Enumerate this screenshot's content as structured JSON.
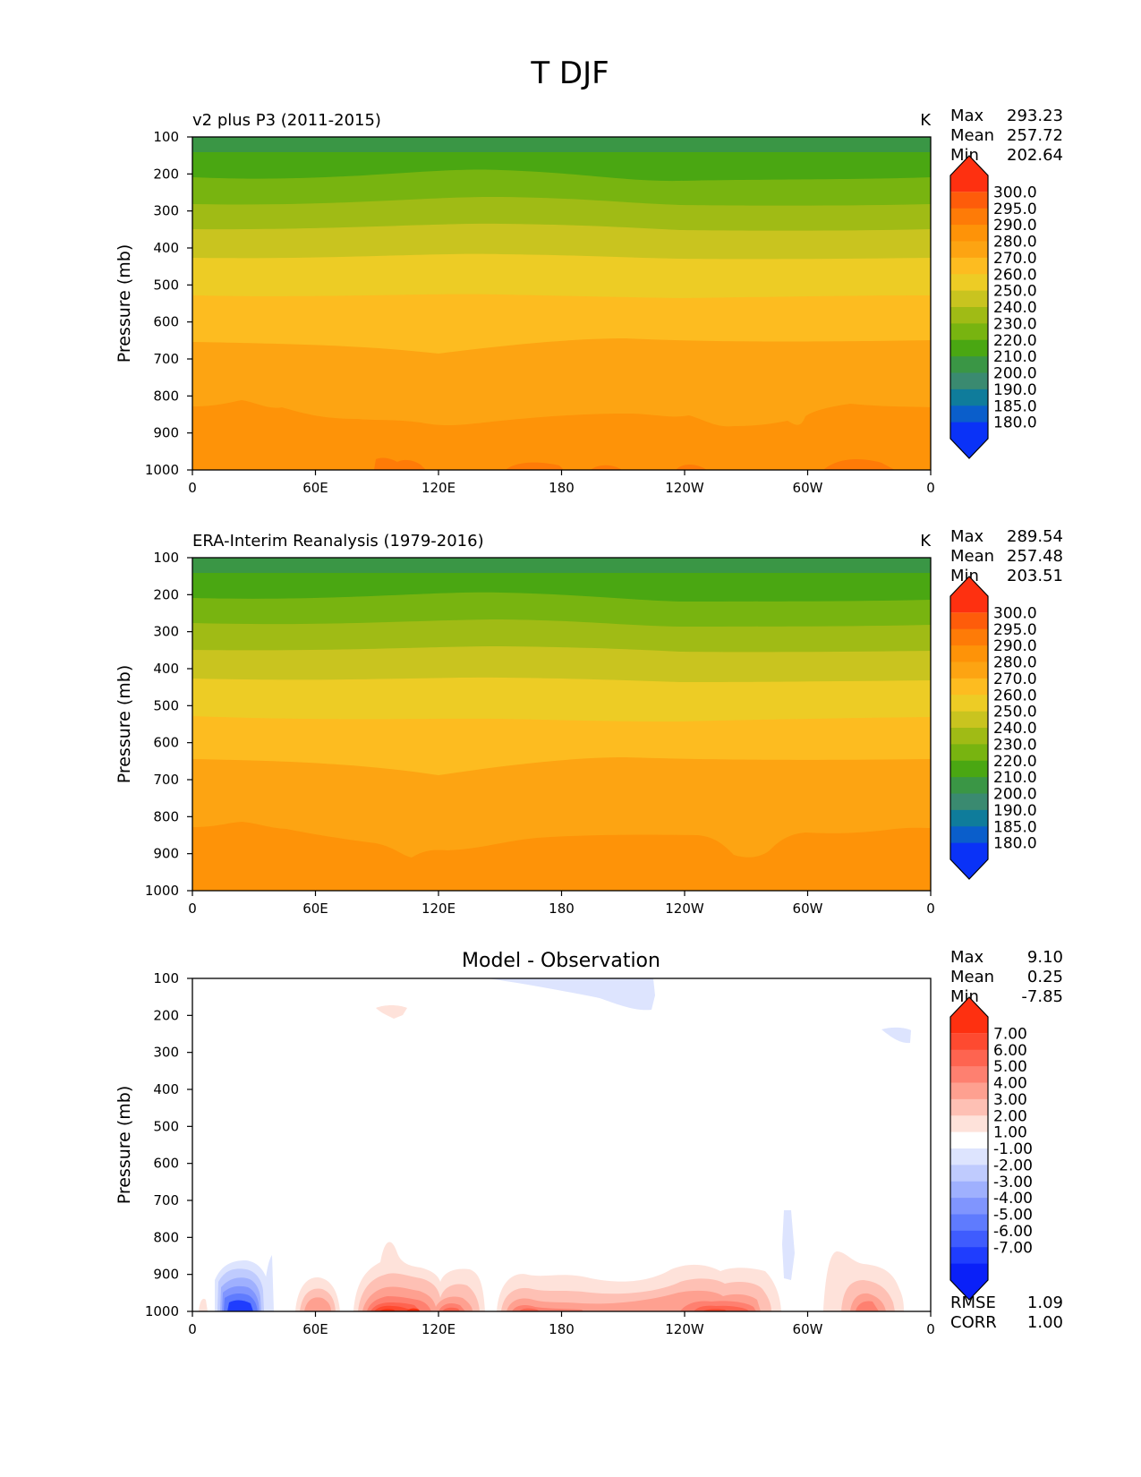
{
  "figure": {
    "title": "T DJF",
    "y_axis_label": "Pressure (mb)",
    "x_ticks": [
      "0",
      "60E",
      "120E",
      "180",
      "120W",
      "60W",
      "0"
    ],
    "y_ticks": [
      "100",
      "200",
      "300",
      "400",
      "500",
      "600",
      "700",
      "800",
      "900",
      "1000"
    ],
    "stats_labels": {
      "max": "Max",
      "mean": "Mean",
      "min": "Min",
      "rmse": "RMSE",
      "corr": "CORR"
    },
    "abs_colorbar": {
      "labels": [
        "300.0",
        "295.0",
        "290.0",
        "280.0",
        "270.0",
        "260.0",
        "250.0",
        "240.0",
        "230.0",
        "220.0",
        "210.0",
        "200.0",
        "190.0",
        "185.0",
        "180.0"
      ],
      "colors_top_to_bottom": [
        "#fe3010",
        "#fe5c0a",
        "#fe7b07",
        "#fe9308",
        "#fda412",
        "#fdbc20",
        "#edcc25",
        "#c9c41f",
        "#a0bb15",
        "#78b410",
        "#4aa712",
        "#3a9645",
        "#3a8a70",
        "#0f7c9b",
        "#0a5ecb",
        "#0a32f7"
      ]
    },
    "diff_colorbar": {
      "labels": [
        "7.00",
        "6.00",
        "5.00",
        "4.00",
        "3.00",
        "2.00",
        "1.00",
        "-1.00",
        "-2.00",
        "-3.00",
        "-4.00",
        "-5.00",
        "-6.00",
        "-7.00"
      ],
      "colors_top_to_bottom": [
        "#fe3010",
        "#fe4a30",
        "#fe6450",
        "#fe8070",
        "#fea090",
        "#fec0b4",
        "#fee2da",
        "#ffffff",
        "#dde4fe",
        "#bfcbfe",
        "#9fb0fe",
        "#8095fe",
        "#5f7bfe",
        "#3f5cfe",
        "#1f3dfe",
        "#0a20f8"
      ]
    }
  },
  "chart_data": [
    {
      "type": "heatmap",
      "title": "v2 plus P3 (2011-2015)",
      "units": "K",
      "xlabel": "",
      "ylabel": "Pressure (mb)",
      "xlim": [
        0,
        360
      ],
      "ylim": [
        1000,
        100
      ],
      "stats": {
        "max": "293.23",
        "mean": "257.72",
        "min": "202.64"
      },
      "contour_levels": [
        180,
        185,
        190,
        200,
        210,
        220,
        230,
        240,
        250,
        260,
        270,
        280,
        290,
        295,
        300
      ]
    },
    {
      "type": "heatmap",
      "title": "ERA-Interim Reanalysis (1979-2016)",
      "units": "K",
      "xlabel": "",
      "ylabel": "Pressure (mb)",
      "xlim": [
        0,
        360
      ],
      "ylim": [
        1000,
        100
      ],
      "stats": {
        "max": "289.54",
        "mean": "257.48",
        "min": "203.51"
      },
      "contour_levels": [
        180,
        185,
        190,
        200,
        210,
        220,
        230,
        240,
        250,
        260,
        270,
        280,
        290,
        295,
        300
      ]
    },
    {
      "type": "heatmap",
      "title": "Model - Observation",
      "units": "",
      "xlabel": "",
      "ylabel": "Pressure (mb)",
      "xlim": [
        0,
        360
      ],
      "ylim": [
        1000,
        100
      ],
      "stats": {
        "max": "9.10",
        "mean": "0.25",
        "min": "-7.85",
        "rmse": "1.09",
        "corr": "1.00"
      },
      "contour_levels": [
        -7,
        -6,
        -5,
        -4,
        -3,
        -2,
        -1,
        1,
        2,
        3,
        4,
        5,
        6,
        7
      ]
    }
  ]
}
